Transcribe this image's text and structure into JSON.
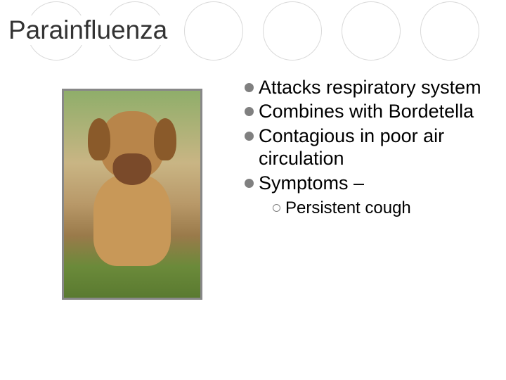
{
  "slide": {
    "title": "Parainfluenza",
    "background_color": "#ffffff",
    "circle_border_color": "#d9d9d9",
    "circle_count": 6
  },
  "image": {
    "border_color": "#888888",
    "subject": "puppy-dog",
    "dog_colors": {
      "head": "#b8854a",
      "ears": "#8a5a2a",
      "muzzle": "#7a4a2a",
      "body": "#c89858"
    }
  },
  "bullets": {
    "main_bullet_color": "#808080",
    "sub_bullet_border_color": "#808080",
    "text_color": "#000000",
    "main_fontsize": 27,
    "sub_fontsize": 24,
    "items": [
      {
        "text": "Attacks respiratory system"
      },
      {
        "text": "Combines with Bordetella"
      },
      {
        "text": "Contagious in poor air circulation"
      },
      {
        "text": "Symptoms –"
      }
    ],
    "sub_items": [
      {
        "text": "Persistent cough"
      }
    ]
  }
}
